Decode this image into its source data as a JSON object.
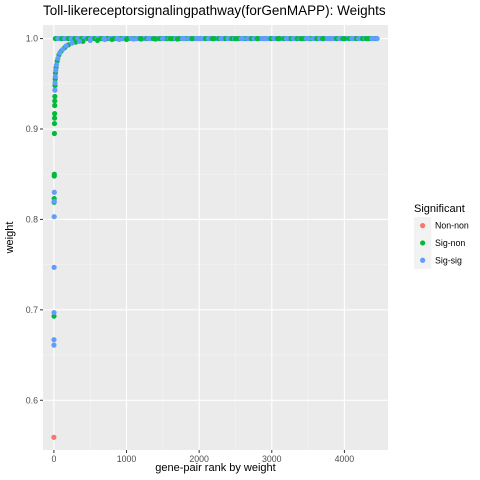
{
  "chart_data": {
    "type": "scatter",
    "title": "Toll-likereceptorsignalingpathway(forGenMAPP): Weights",
    "xlabel": "gene-pair rank by weight",
    "ylabel": "weight",
    "xlim": [
      -150,
      4600
    ],
    "ylim": [
      0.545,
      1.015
    ],
    "x_ticks": [
      0,
      1000,
      2000,
      3000,
      4000
    ],
    "x_tick_labels": [
      "0",
      "1000",
      "2000",
      "3000",
      "4000"
    ],
    "y_ticks": [
      0.6,
      0.7,
      0.8,
      0.9,
      1.0
    ],
    "y_tick_labels": [
      "0.6",
      "0.7",
      "0.8",
      "0.9",
      "1.0"
    ],
    "grid": true,
    "legend": {
      "title": "Significant",
      "position": "right",
      "entries": [
        {
          "label": "Non-non",
          "color": "#F8766D"
        },
        {
          "label": "Sig-non",
          "color": "#00BA38"
        },
        {
          "label": "Sig-sig",
          "color": "#619CFF"
        }
      ]
    },
    "series": [
      {
        "name": "Non-non",
        "color": "#F8766D",
        "points": [
          [
            0,
            0.559
          ]
        ]
      },
      {
        "name": "Sig-non",
        "color": "#00BA38",
        "points": [
          [
            2,
            0.693
          ],
          [
            3,
            0.819
          ],
          [
            4,
            0.823
          ],
          [
            5,
            0.848
          ],
          [
            6,
            0.85
          ],
          [
            7,
            0.895
          ],
          [
            8,
            0.906
          ],
          [
            9,
            0.912
          ],
          [
            10,
            0.917
          ],
          [
            11,
            0.926
          ],
          [
            12,
            0.931
          ],
          [
            13,
            0.936
          ],
          [
            15,
            0.948
          ],
          [
            18,
            0.955
          ],
          [
            22,
            0.962
          ],
          [
            30,
            0.968
          ],
          [
            45,
            0.975
          ],
          [
            70,
            0.982
          ],
          [
            100,
            0.986
          ],
          [
            150,
            0.99
          ],
          [
            200,
            0.993
          ],
          [
            300,
            0.996
          ],
          [
            400,
            0.997
          ],
          [
            600,
            0.998
          ],
          [
            800,
            0.999
          ],
          [
            1000,
            0.999
          ],
          [
            1200,
            0.9995
          ],
          [
            1400,
            0.9995
          ],
          [
            1600,
            1.0
          ],
          [
            1700,
            0.9995
          ],
          [
            1900,
            1.0
          ],
          [
            2200,
            1.0
          ],
          [
            2500,
            1.0
          ],
          [
            2800,
            1.0
          ],
          [
            3100,
            1.0
          ],
          [
            3400,
            1.0
          ],
          [
            3700,
            1.0
          ],
          [
            4000,
            1.0
          ],
          [
            4300,
            1.0
          ]
        ]
      },
      {
        "name": "Sig-sig",
        "color": "#619CFF",
        "points": [
          [
            1,
            0.661
          ],
          [
            1,
            0.667
          ],
          [
            2,
            0.697
          ],
          [
            3,
            0.747
          ],
          [
            4,
            0.803
          ],
          [
            5,
            0.82
          ],
          [
            6,
            0.83
          ],
          [
            14,
            0.943
          ],
          [
            16,
            0.951
          ],
          [
            20,
            0.958
          ],
          [
            26,
            0.965
          ],
          [
            35,
            0.971
          ],
          [
            55,
            0.978
          ],
          [
            80,
            0.984
          ],
          [
            120,
            0.988
          ],
          [
            170,
            0.992
          ],
          [
            250,
            0.995
          ],
          [
            350,
            0.997
          ],
          [
            500,
            0.998
          ],
          [
            700,
            0.999
          ],
          [
            900,
            0.999
          ],
          [
            1100,
            0.9995
          ],
          [
            1300,
            1.0
          ],
          [
            1500,
            1.0
          ],
          [
            1800,
            1.0
          ],
          [
            2000,
            1.0
          ],
          [
            2300,
            1.0
          ],
          [
            2600,
            1.0
          ],
          [
            2900,
            1.0
          ],
          [
            3200,
            1.0
          ],
          [
            3500,
            1.0
          ],
          [
            3800,
            1.0
          ],
          [
            4100,
            1.0
          ],
          [
            4400,
            1.0
          ],
          [
            4450,
            1.0
          ]
        ]
      }
    ],
    "dense_band": {
      "note_series": [
        "Sig-non",
        "Sig-sig"
      ],
      "x_range": [
        20,
        4450
      ],
      "y_value": 1.0
    }
  }
}
